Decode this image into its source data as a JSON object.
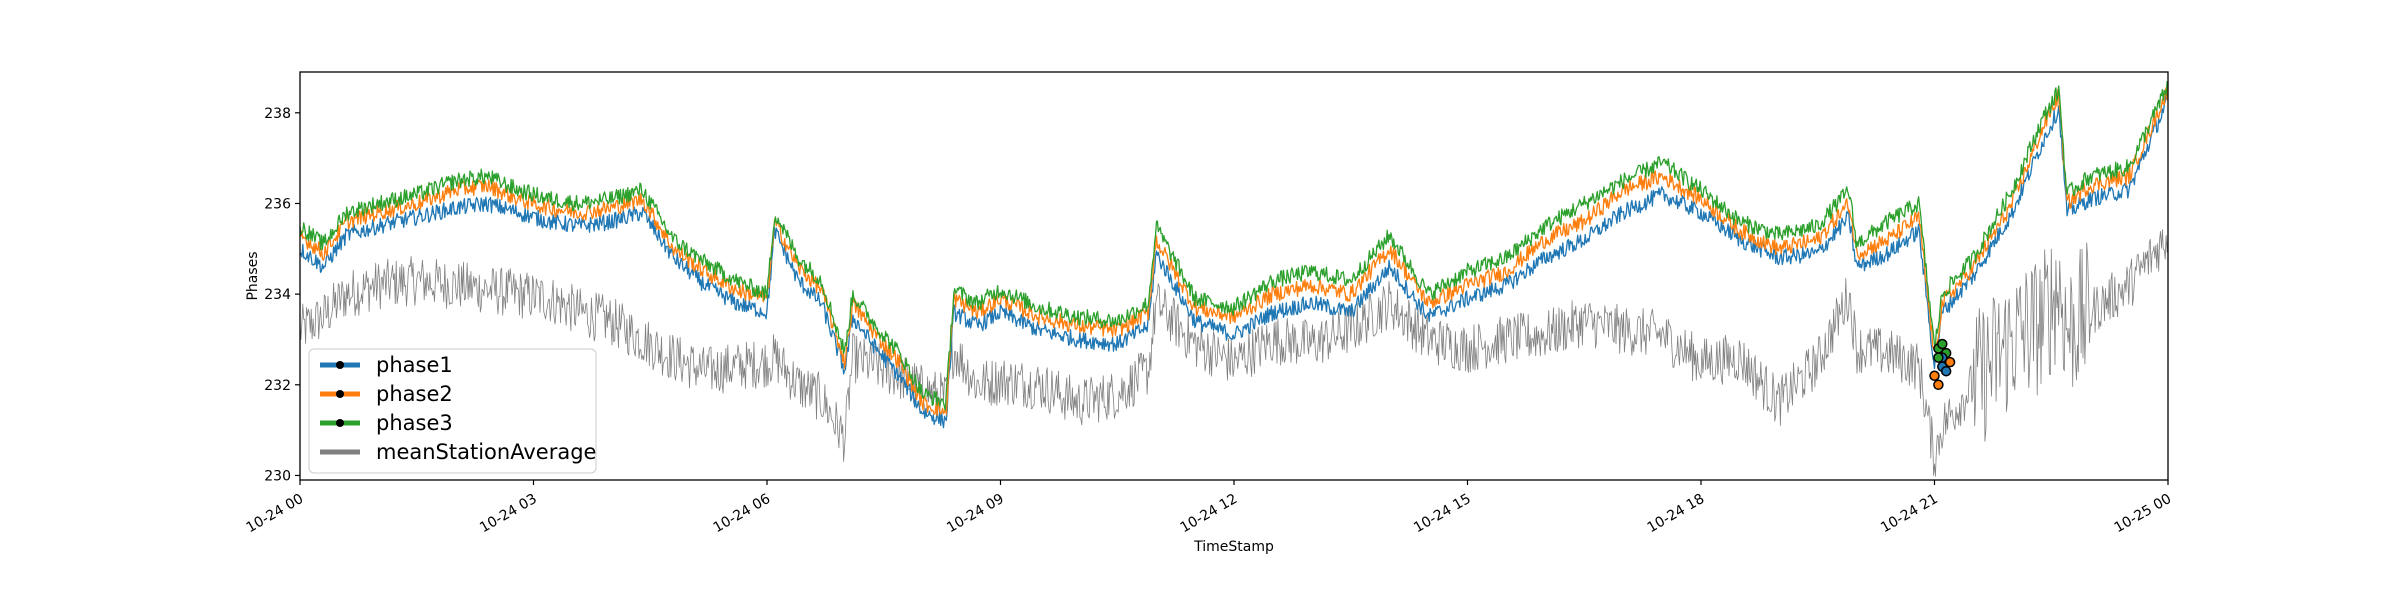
{
  "chart_data": {
    "type": "line",
    "title": "",
    "xlabel": "TimeStamp",
    "ylabel": "Phases",
    "x_range": [
      "10-24 00:00",
      "10-25 00:00"
    ],
    "ylim": [
      229.9,
      238.9
    ],
    "x_ticks": [
      "10-24 00",
      "10-24 03",
      "10-24 06",
      "10-24 09",
      "10-24 12",
      "10-24 15",
      "10-24 18",
      "10-24 21",
      "10-25 00"
    ],
    "y_ticks": [
      230,
      232,
      234,
      236,
      238
    ],
    "grid": false,
    "legend_position": "lower-left",
    "x_hours": [
      0,
      0.3,
      0.6,
      1.0,
      1.5,
      2.0,
      2.4,
      2.8,
      3.2,
      3.6,
      4.0,
      4.4,
      4.8,
      5.2,
      5.6,
      6.0,
      6.1,
      6.4,
      6.7,
      7.0,
      7.1,
      7.4,
      7.7,
      8.0,
      8.3,
      8.4,
      8.7,
      9.0,
      9.5,
      10.0,
      10.5,
      10.9,
      11.0,
      11.5,
      12.0,
      12.5,
      13.0,
      13.5,
      14.0,
      14.5,
      15.0,
      15.5,
      16.0,
      16.5,
      17.0,
      17.5,
      18.0,
      18.5,
      19.0,
      19.5,
      19.9,
      20.0,
      20.4,
      20.8,
      21.0,
      21.1,
      21.5,
      22.0,
      22.4,
      22.6,
      22.7,
      23.0,
      23.5,
      24.0
    ],
    "series": [
      {
        "name": "phase1",
        "color": "#1f77b4",
        "values": [
          235.0,
          234.6,
          235.3,
          235.5,
          235.7,
          235.9,
          236.0,
          235.8,
          235.6,
          235.5,
          235.6,
          235.8,
          234.8,
          234.2,
          233.8,
          233.6,
          235.4,
          234.3,
          233.8,
          232.3,
          233.5,
          232.8,
          232.2,
          231.4,
          231.2,
          233.6,
          233.3,
          233.6,
          233.2,
          233.0,
          232.9,
          233.3,
          234.9,
          233.4,
          233.1,
          233.6,
          233.8,
          233.6,
          234.6,
          233.5,
          233.9,
          234.2,
          234.8,
          235.2,
          235.8,
          236.2,
          235.8,
          235.2,
          234.8,
          234.9,
          235.7,
          234.6,
          234.9,
          235.4,
          232.4,
          233.6,
          234.4,
          235.8,
          237.4,
          238.1,
          235.8,
          236.1,
          236.3,
          238.3
        ]
      },
      {
        "name": "phase2",
        "color": "#ff7f0e",
        "values": [
          235.3,
          234.9,
          235.6,
          235.8,
          236.0,
          236.3,
          236.4,
          236.1,
          235.9,
          235.8,
          235.9,
          236.1,
          235.0,
          234.5,
          234.1,
          233.9,
          235.6,
          234.6,
          234.1,
          232.5,
          233.8,
          233.1,
          232.5,
          231.6,
          231.4,
          233.9,
          233.6,
          233.9,
          233.5,
          233.3,
          233.2,
          233.6,
          235.2,
          233.7,
          233.5,
          234.0,
          234.2,
          234.0,
          235.0,
          233.8,
          234.2,
          234.5,
          235.2,
          235.6,
          236.3,
          236.6,
          236.1,
          235.4,
          235.0,
          235.2,
          236.0,
          234.9,
          235.2,
          235.7,
          232.6,
          233.8,
          234.6,
          236.0,
          237.7,
          238.4,
          236.0,
          236.4,
          236.6,
          238.5
        ]
      },
      {
        "name": "phase3",
        "color": "#2ca02c",
        "values": [
          235.5,
          235.1,
          235.8,
          236.0,
          236.2,
          236.5,
          236.6,
          236.3,
          236.1,
          236.0,
          236.1,
          236.3,
          235.2,
          234.7,
          234.3,
          234.0,
          235.8,
          234.8,
          234.3,
          232.7,
          234.0,
          233.3,
          232.7,
          231.8,
          231.6,
          234.1,
          233.8,
          234.1,
          233.7,
          233.5,
          233.4,
          233.8,
          235.5,
          233.9,
          233.7,
          234.3,
          234.5,
          234.3,
          235.3,
          234.0,
          234.5,
          234.8,
          235.5,
          236.0,
          236.5,
          236.9,
          236.3,
          235.6,
          235.3,
          235.5,
          236.3,
          235.1,
          235.6,
          236.0,
          232.8,
          234.0,
          234.8,
          236.3,
          237.9,
          238.5,
          236.2,
          236.6,
          236.8,
          238.6
        ]
      },
      {
        "name": "meanStationAverage",
        "color": "#808080",
        "values": [
          233.2,
          233.5,
          234.0,
          234.2,
          234.3,
          234.2,
          234.1,
          234.0,
          233.9,
          233.6,
          233.4,
          233.0,
          232.6,
          232.3,
          232.4,
          232.5,
          232.6,
          232.0,
          231.7,
          230.8,
          232.6,
          232.4,
          232.2,
          231.9,
          231.7,
          232.8,
          232.0,
          232.1,
          232.0,
          231.6,
          231.8,
          232.3,
          233.8,
          232.9,
          232.5,
          233.0,
          232.9,
          233.2,
          233.8,
          233.0,
          232.8,
          233.0,
          233.1,
          233.4,
          233.2,
          233.1,
          232.5,
          232.6,
          231.6,
          232.5,
          234.0,
          232.8,
          232.7,
          232.4,
          230.4,
          231.1,
          232.0,
          233.0,
          233.4,
          234.2,
          233.2,
          233.6,
          234.2,
          235.3
        ]
      }
    ],
    "marker_cluster": {
      "x_hours": [
        21.05,
        21.1,
        21.15,
        21.05,
        21.1,
        21.2,
        21.0,
        21.1,
        21.15,
        21.05
      ],
      "values": [
        232.0,
        232.4,
        232.7,
        232.8,
        232.6,
        232.5,
        232.2,
        232.9,
        232.3,
        232.6
      ],
      "colors": [
        "#ff7f0e",
        "#1f77b4",
        "#2ca02c",
        "#2ca02c",
        "#1f77b4",
        "#ff7f0e",
        "#ff7f0e",
        "#2ca02c",
        "#1f77b4",
        "#2ca02c"
      ]
    }
  }
}
